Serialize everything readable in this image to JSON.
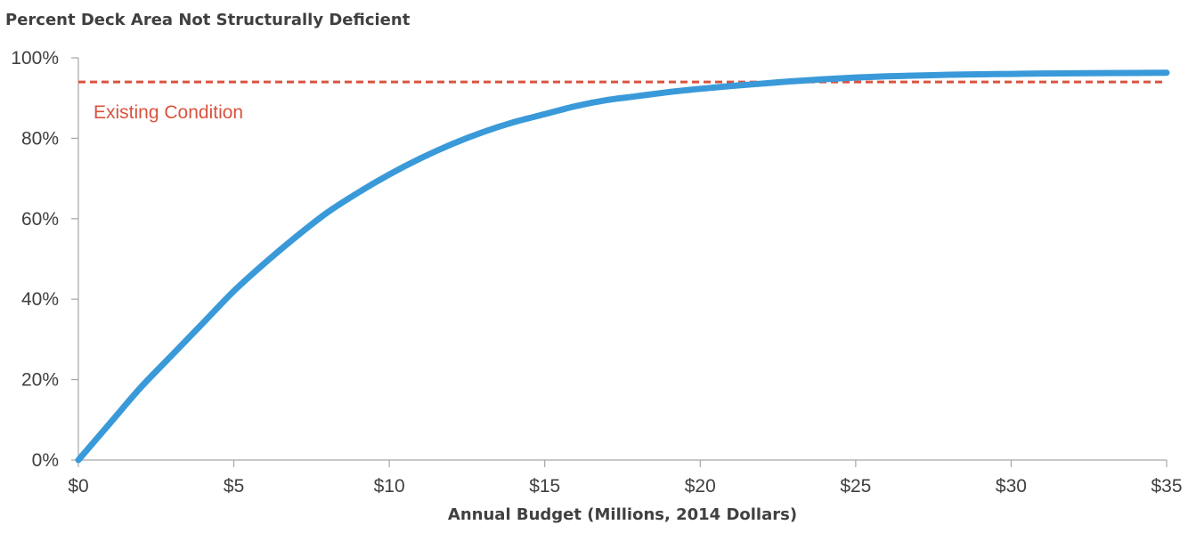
{
  "chart_data": {
    "type": "line",
    "title": "Percent Deck Area Not Structurally Deficient",
    "xlabel": "Annual Budget (Millions, 2014 Dollars)",
    "ylabel": "",
    "xlim": [
      0,
      35
    ],
    "ylim": [
      0,
      100
    ],
    "x_ticks": [
      0,
      5,
      10,
      15,
      20,
      25,
      30,
      35
    ],
    "x_tick_labels": [
      "$0",
      "$5",
      "$10",
      "$15",
      "$20",
      "$25",
      "$30",
      "$35"
    ],
    "y_ticks": [
      0,
      20,
      40,
      60,
      80,
      100
    ],
    "y_tick_labels": [
      "0%",
      "20%",
      "40%",
      "60%",
      "80%",
      "100%"
    ],
    "grid": false,
    "series": [
      {
        "color": "#3a9ad9",
        "x": [
          0,
          1,
          2,
          3,
          4,
          5,
          6,
          7,
          8,
          9,
          10,
          11,
          12,
          13,
          14,
          15,
          16,
          17,
          18,
          19,
          20,
          21,
          22,
          23,
          24,
          25,
          26,
          27,
          28,
          29,
          30,
          31,
          32,
          33,
          34,
          35
        ],
        "y": [
          0,
          9,
          18,
          26,
          34,
          42,
          49,
          55.5,
          61.5,
          66.5,
          71,
          75,
          78.5,
          81.5,
          84,
          86,
          88,
          89.5,
          90.5,
          91.5,
          92.3,
          93,
          93.6,
          94.2,
          94.7,
          95.1,
          95.4,
          95.6,
          95.8,
          95.9,
          96,
          96.1,
          96.15,
          96.2,
          96.25,
          96.3
        ]
      }
    ],
    "reference_line": {
      "label": "Existing Condition",
      "y": 94,
      "color": "#d9533f",
      "style": "dashed"
    }
  }
}
